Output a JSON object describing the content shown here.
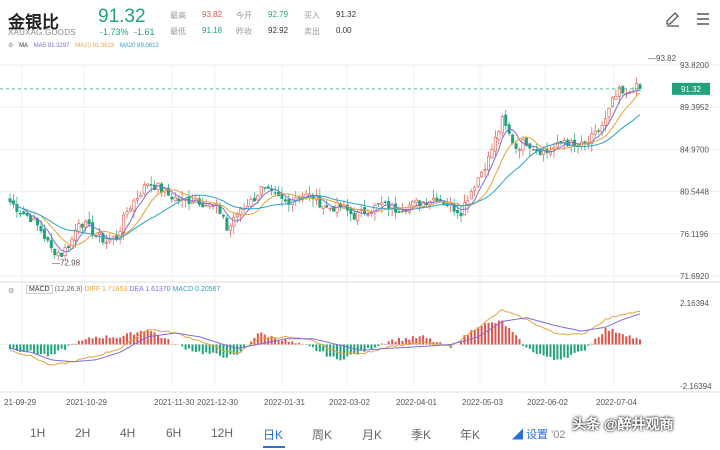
{
  "header": {
    "title": "金银比",
    "symbol": "XAUXAG.GOODS",
    "price": "91.32",
    "change_pct": "-1.73%",
    "change_abs": "-1.61",
    "stats": [
      {
        "label": "最高",
        "value": "93.82",
        "color": "#e0544b"
      },
      {
        "label": "今开",
        "value": "92.79",
        "color": "#1fa37a"
      },
      {
        "label": "买入",
        "value": "91.32",
        "color": "#333333"
      },
      {
        "label": "最低",
        "value": "91.18",
        "color": "#1fa37a"
      },
      {
        "label": "昨收",
        "value": "92.92",
        "color": "#333333"
      },
      {
        "label": "卖出",
        "value": "0.00",
        "color": "#333333"
      }
    ],
    "icons": [
      "edit-icon",
      "menu-icon"
    ]
  },
  "ma_legend": {
    "prefix": "MA",
    "ma5": "MA5 91.3297",
    "ma10": "MA10 91.3623",
    "ma20": "MA20 89.0612",
    "colors": {
      "ma5": "#7b6fd6",
      "ma10": "#e8a33d",
      "ma20": "#2aa3c9"
    }
  },
  "macd_legend": {
    "name": "MACD",
    "params": "(12,26,9)",
    "diff": "DIFF 1.71653",
    "dea": "DEA 1.61370",
    "macd": "MACD 0.20567"
  },
  "chart_data": [
    {
      "type": "candlestick",
      "name": "kline",
      "y_ticks": [
        "93.8200",
        "89.3952",
        "84.9700",
        "80.5448",
        "76.1196",
        "71.6920"
      ],
      "ylim": [
        71.692,
        93.82
      ],
      "x_tick_labels": [
        "21-09-29",
        "2021-10-29",
        "2021-11-30",
        "2021-12-30",
        "2022-01-31",
        "2022-03-02",
        "2022-04-01",
        "2022-05-03",
        "2022-06-02",
        "2022-07-04"
      ],
      "annotations": {
        "high": "93.82",
        "low": "72.98",
        "current": "91.32"
      },
      "close_anchors": [
        [
          0,
          79.5
        ],
        [
          3,
          78.5
        ],
        [
          6,
          77.8
        ],
        [
          9,
          76.5
        ],
        [
          12,
          74.5
        ],
        [
          15,
          74.0
        ],
        [
          18,
          75.5
        ],
        [
          20,
          77.5
        ],
        [
          22,
          77.0
        ],
        [
          25,
          76.0
        ],
        [
          28,
          75.3
        ],
        [
          31,
          75.8
        ],
        [
          34,
          78.5
        ],
        [
          37,
          80.0
        ],
        [
          40,
          81.5
        ],
        [
          43,
          81.0
        ],
        [
          46,
          80.2
        ],
        [
          50,
          79.5
        ],
        [
          54,
          79.8
        ],
        [
          57,
          79.2
        ],
        [
          60,
          78.8
        ],
        [
          62,
          78.0
        ],
        [
          63,
          76.5
        ],
        [
          65,
          77.5
        ],
        [
          67,
          78.8
        ],
        [
          70,
          79.5
        ],
        [
          73,
          80.8
        ],
        [
          76,
          80.2
        ],
        [
          80,
          79.5
        ],
        [
          84,
          80.2
        ],
        [
          88,
          80.0
        ],
        [
          92,
          78.8
        ],
        [
          96,
          79.0
        ],
        [
          100,
          78.0
        ],
        [
          104,
          78.6
        ],
        [
          108,
          79.2
        ],
        [
          112,
          78.7
        ],
        [
          116,
          79.1
        ],
        [
          120,
          79.5
        ],
        [
          124,
          80.0
        ],
        [
          128,
          79.0
        ],
        [
          131,
          78.5
        ],
        [
          133,
          80.0
        ],
        [
          136,
          82.0
        ],
        [
          139,
          84.0
        ],
        [
          141,
          86.0
        ],
        [
          143,
          88.0
        ],
        [
          145,
          86.5
        ],
        [
          147,
          85.2
        ],
        [
          150,
          85.8
        ],
        [
          153,
          85.0
        ],
        [
          156,
          84.7
        ],
        [
          159,
          85.3
        ],
        [
          161,
          86.0
        ],
        [
          164,
          85.2
        ],
        [
          167,
          85.4
        ],
        [
          170,
          86.5
        ],
        [
          173,
          88.0
        ],
        [
          175,
          90.0
        ],
        [
          177,
          91.0
        ],
        [
          179,
          90.5
        ],
        [
          181,
          91.5
        ],
        [
          183,
          91.3
        ]
      ],
      "ma_series": [
        "MA5",
        "MA10",
        "MA20"
      ]
    },
    {
      "type": "bar",
      "name": "macd",
      "y_ticks": [
        "2.16394",
        "-2.16394"
      ],
      "ylim": [
        -2.16394,
        2.16394
      ],
      "diff_anchors": [
        [
          0,
          -0.3
        ],
        [
          6,
          -0.6
        ],
        [
          12,
          -1.1
        ],
        [
          18,
          -0.9
        ],
        [
          25,
          -0.6
        ],
        [
          32,
          -0.2
        ],
        [
          40,
          0.8
        ],
        [
          48,
          0.6
        ],
        [
          55,
          0.2
        ],
        [
          62,
          -0.3
        ],
        [
          66,
          -0.5
        ],
        [
          72,
          0.3
        ],
        [
          80,
          0.4
        ],
        [
          88,
          0.2
        ],
        [
          95,
          -0.4
        ],
        [
          102,
          -0.5
        ],
        [
          110,
          -0.1
        ],
        [
          120,
          0.1
        ],
        [
          128,
          -0.1
        ],
        [
          136,
          0.9
        ],
        [
          143,
          1.8
        ],
        [
          150,
          1.3
        ],
        [
          158,
          0.6
        ],
        [
          166,
          0.5
        ],
        [
          173,
          1.3
        ],
        [
          178,
          1.6
        ],
        [
          183,
          1.7
        ]
      ],
      "dea_anchors": [
        [
          0,
          -0.2
        ],
        [
          6,
          -0.4
        ],
        [
          12,
          -0.8
        ],
        [
          18,
          -0.9
        ],
        [
          25,
          -0.8
        ],
        [
          32,
          -0.4
        ],
        [
          40,
          0.4
        ],
        [
          48,
          0.6
        ],
        [
          55,
          0.4
        ],
        [
          62,
          0.0
        ],
        [
          66,
          -0.2
        ],
        [
          72,
          0.0
        ],
        [
          80,
          0.3
        ],
        [
          88,
          0.3
        ],
        [
          95,
          0.0
        ],
        [
          102,
          -0.3
        ],
        [
          110,
          -0.2
        ],
        [
          120,
          -0.1
        ],
        [
          128,
          0.0
        ],
        [
          136,
          0.4
        ],
        [
          143,
          1.2
        ],
        [
          150,
          1.4
        ],
        [
          158,
          1.0
        ],
        [
          166,
          0.7
        ],
        [
          173,
          0.9
        ],
        [
          178,
          1.3
        ],
        [
          183,
          1.6
        ]
      ]
    }
  ],
  "tabs": [
    "1H",
    "2H",
    "4H",
    "6H",
    "12H",
    "日K",
    "周K",
    "月K",
    "季K",
    "年K"
  ],
  "active_tab": "日K",
  "settings_label": "设置",
  "settings_extra": "'02",
  "watermark": {
    "prefix": "头条",
    "text": "@醉井观商"
  },
  "colors": {
    "up": "#e0544b",
    "down": "#1fa37a",
    "accent": "#2a72d9"
  }
}
